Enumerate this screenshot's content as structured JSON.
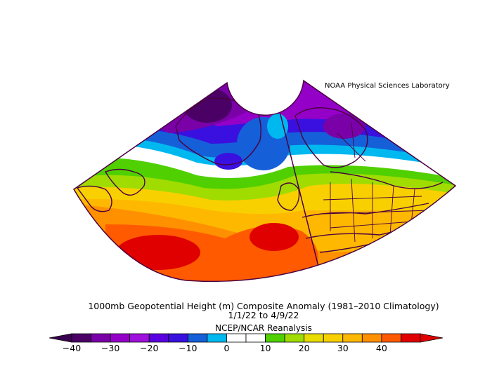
{
  "credit": "NOAA Physical Sciences Laboratory",
  "title_line1": "1000mb Geopotential Height (m) Composite Anomaly (1981–2010 Climatology)",
  "title_line2": "1/1/22  to 4/9/22",
  "title_line3": "NCEP/NCAR Reanalysis",
  "legend": {
    "tick_labels": [
      "−40",
      "−30",
      "−20",
      "−10",
      "0",
      "10",
      "20",
      "30",
      "40"
    ],
    "colors": [
      "#4b0066",
      "#7a00a8",
      "#9400c8",
      "#a010dc",
      "#5a00e0",
      "#3a10e0",
      "#1560d8",
      "#00b8f0",
      "#ffffff",
      "#ffffff",
      "#50d000",
      "#a0dc00",
      "#e8dc00",
      "#f8d000",
      "#ffb800",
      "#ff9000",
      "#ff5a00",
      "#e00000"
    ],
    "end_left_color": "#3a0050",
    "end_right_color": "#e00000"
  },
  "colors": {
    "coast": "#4a0040",
    "border": "#4a0040"
  }
}
